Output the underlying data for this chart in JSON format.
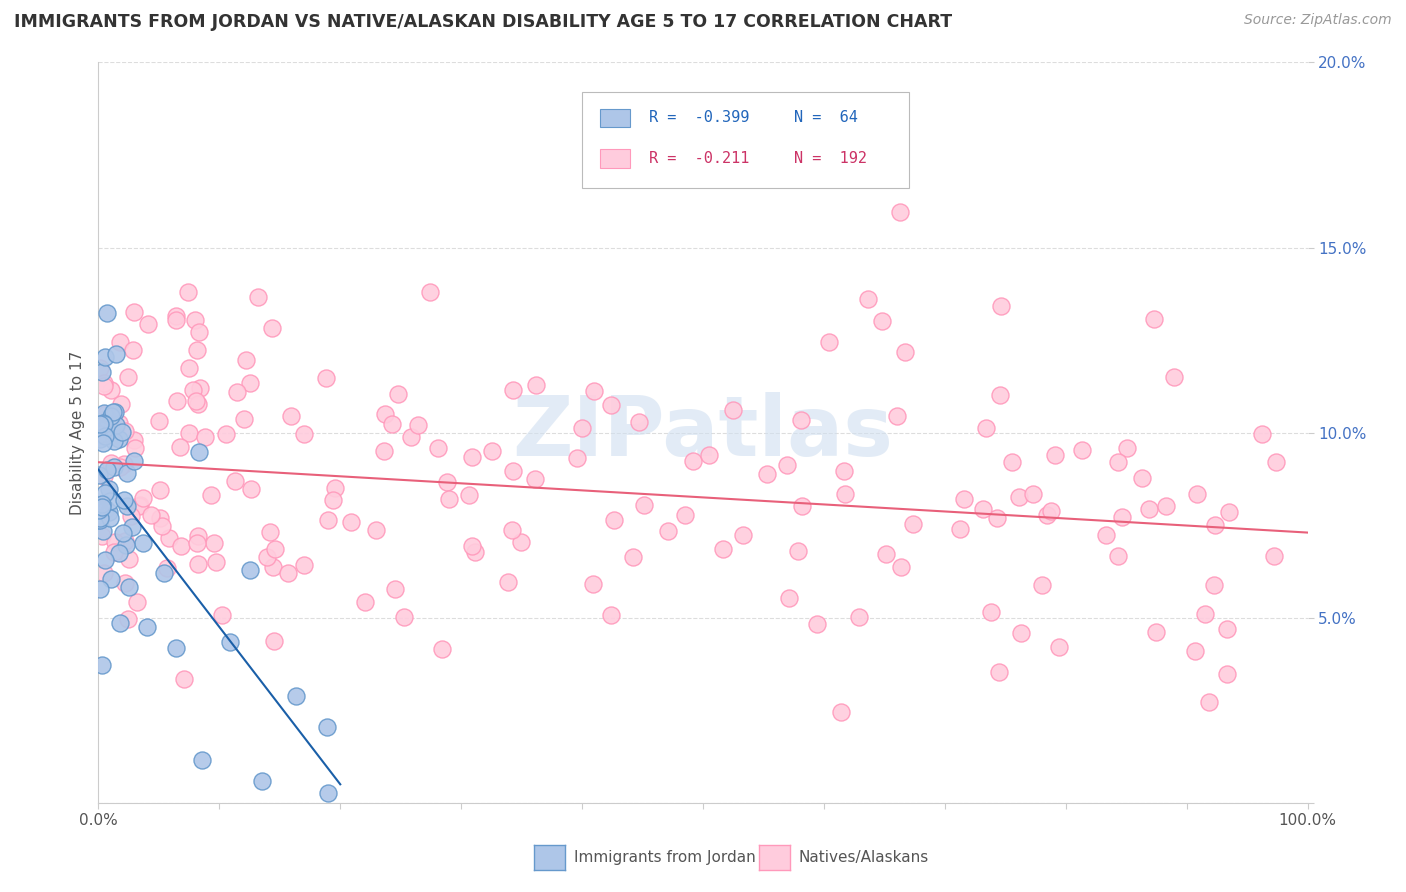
{
  "title": "IMMIGRANTS FROM JORDAN VS NATIVE/ALASKAN DISABILITY AGE 5 TO 17 CORRELATION CHART",
  "source": "Source: ZipAtlas.com",
  "ylabel": "Disability Age 5 to 17",
  "xlim": [
    0,
    100
  ],
  "ylim": [
    0,
    20
  ],
  "xtick_positions": [
    0,
    10,
    20,
    30,
    40,
    50,
    60,
    70,
    80,
    90,
    100
  ],
  "xtick_labels": [
    "0.0%",
    "",
    "",
    "",
    "",
    "",
    "",
    "",
    "",
    "",
    "100.0%"
  ],
  "ytick_positions": [
    0,
    5,
    10,
    15,
    20
  ],
  "ytick_labels": [
    "",
    "5.0%",
    "10.0%",
    "15.0%",
    "20.0%"
  ],
  "legend_r1": "R =  -0.399",
  "legend_n1": "N =  64",
  "legend_r2": "R =  -0.211",
  "legend_n2": "N =  192",
  "color_blue_fill": "#aec6e8",
  "color_blue_edge": "#6699cc",
  "color_pink_fill": "#ffccdd",
  "color_pink_edge": "#ff99bb",
  "color_blue_line": "#1a5fa8",
  "color_pink_line": "#e8607a",
  "color_ytick": "#4472c4",
  "color_xtick": "#555555",
  "watermark": "ZIPatlas",
  "watermark_color": "#d0dff0",
  "grid_color": "#dddddd",
  "title_color": "#333333",
  "source_color": "#999999",
  "legend_label_blue": "Immigrants from Jordan",
  "legend_label_pink": "Natives/Alaskans",
  "blue_line_x0": 0,
  "blue_line_x1": 20,
  "blue_line_y0": 9.0,
  "blue_line_y1": 0.5,
  "pink_line_x0": 0,
  "pink_line_x1": 100,
  "pink_line_y0": 9.2,
  "pink_line_y1": 7.3
}
